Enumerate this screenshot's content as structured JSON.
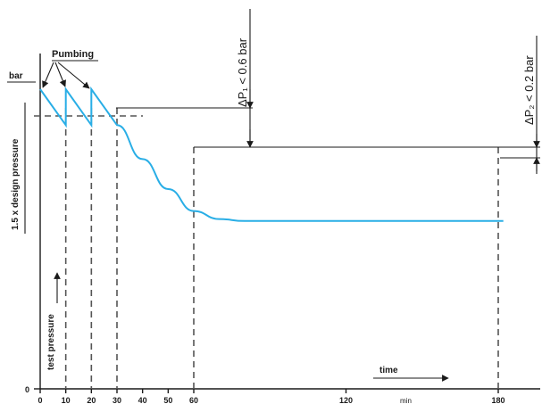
{
  "chart_data": {
    "type": "line",
    "x_unit_label": "min",
    "x_direction_label": "time",
    "y_unit_label": "bar",
    "y_zero_label": "0",
    "y_upper_label": "1.5 x design pressure",
    "y_lower_label": "test pressure",
    "annotation_pumping": "Pumbing",
    "annotation_dp1": "ΔP₁ < 0.6 bar",
    "annotation_dp2": "ΔP₂ < 0.2 bar",
    "x_ticks": [
      0,
      10,
      20,
      30,
      40,
      50,
      60,
      120,
      180
    ],
    "x_tick_labels": [
      "0",
      "10",
      "20",
      "30",
      "40",
      "50",
      "60",
      "120",
      "180"
    ],
    "dashed_time_markers": [
      10,
      20,
      30,
      60,
      180
    ],
    "series": [
      {
        "x": [
          0,
          10,
          10,
          20,
          20,
          30,
          40,
          50,
          60,
          70,
          80,
          90,
          180,
          182
        ],
        "y": [
          1.5,
          1.32,
          1.5,
          1.32,
          1.5,
          1.32,
          1.15,
          1.0,
          0.89,
          0.85,
          0.84,
          0.84,
          0.84,
          0.84
        ]
      }
    ],
    "colors": {
      "curve": "#29aee6",
      "axis": "#1a1a1a",
      "dashed": "#555555"
    }
  }
}
